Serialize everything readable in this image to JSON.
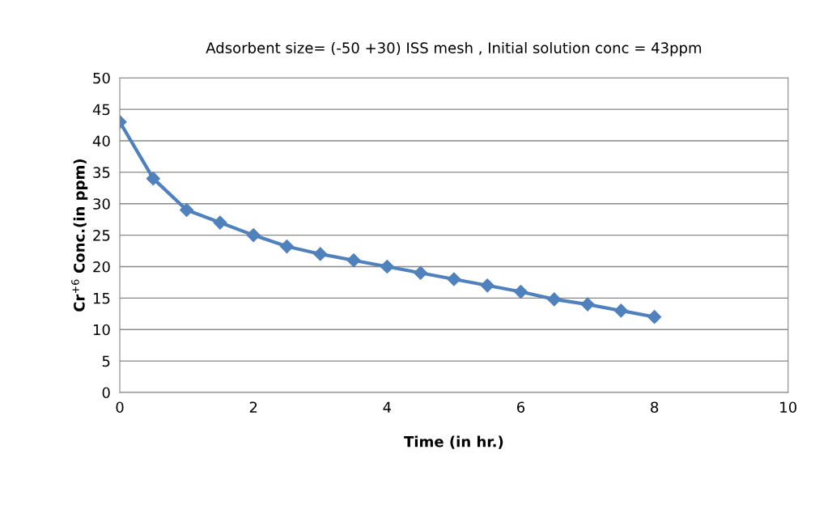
{
  "chart_data": {
    "type": "line",
    "title": "Adsorbent size= (-50 +30) ISS mesh , Initial solution conc = 43ppm",
    "xlabel": "Time (in hr.)",
    "ylabel": "Cr$^{+6}$ Conc.(in ppm)",
    "x": [
      0,
      0.5,
      1,
      1.5,
      2,
      2.5,
      3,
      3.5,
      4,
      4.5,
      5,
      5.5,
      6,
      6.5,
      7,
      7.5,
      8
    ],
    "series": [
      {
        "color": "#4f81bd",
        "values": [
          43,
          34,
          29,
          27,
          25,
          23.2,
          22,
          21,
          20,
          19,
          18,
          17,
          16,
          14.8,
          14,
          13,
          12
        ]
      }
    ],
    "xlim": [
      0,
      10
    ],
    "xticks": [
      0,
      2,
      4,
      6,
      8,
      10
    ],
    "ylim": [
      0,
      50
    ],
    "yticks": [
      0,
      5,
      10,
      15,
      20,
      25,
      30,
      35,
      40,
      45,
      50
    ],
    "grid": "y",
    "marker": "diamond",
    "line_style": "solid"
  }
}
